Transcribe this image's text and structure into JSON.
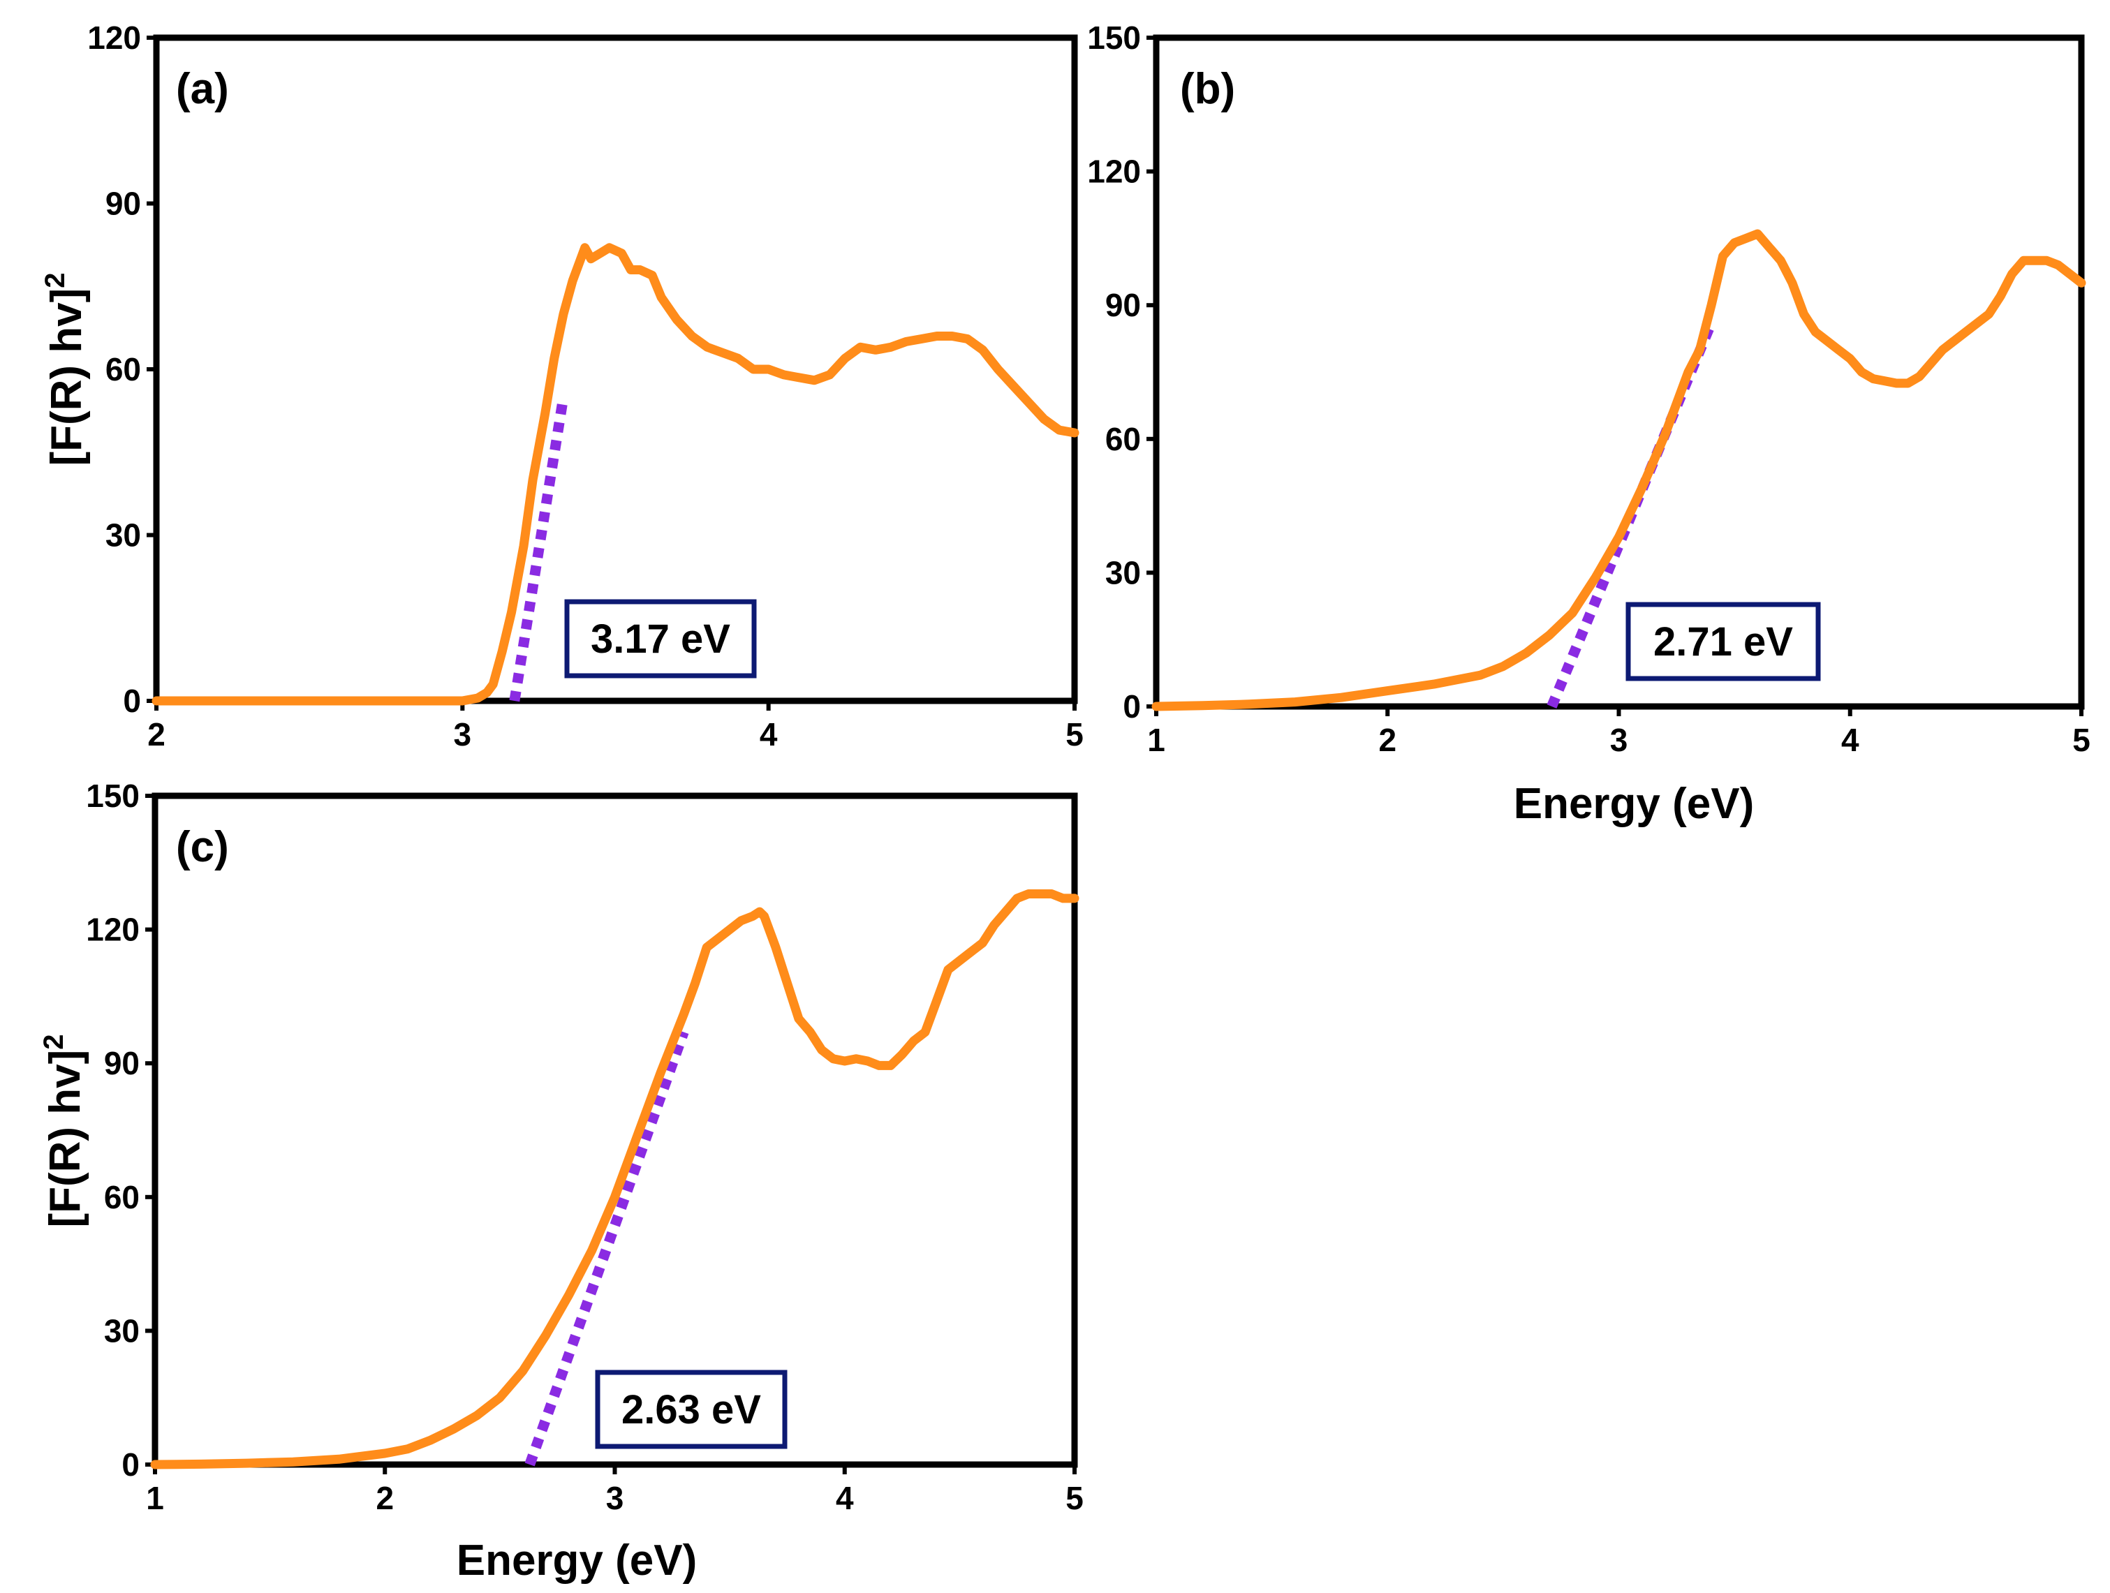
{
  "figure": {
    "panels": [
      "a",
      "b",
      "c"
    ]
  },
  "colors": {
    "curve": "#ff8c1a",
    "fit_line": "#8a2be2",
    "frame": "#000000",
    "gap_box_border": "#0d1a73"
  },
  "chart_data": [
    {
      "id": "a",
      "type": "line",
      "panel_label": "(a)",
      "xlabel": "",
      "ylabel": "[F(R) hv]",
      "ylabel_sup": "2",
      "xlim": [
        2,
        5
      ],
      "ylim": [
        0,
        120
      ],
      "xticks": [
        2,
        3,
        4,
        5
      ],
      "yticks": [
        0,
        30,
        60,
        90,
        120
      ],
      "grid": false,
      "band_gap_label": "3.17 eV",
      "fit_line": {
        "x": [
          3.17,
          3.33
        ],
        "y": [
          0,
          55
        ]
      },
      "series": [
        {
          "name": "[F(R) hv]^2",
          "x": [
            2.0,
            2.5,
            3.0,
            3.05,
            3.08,
            3.1,
            3.13,
            3.16,
            3.2,
            3.23,
            3.27,
            3.3,
            3.33,
            3.36,
            3.4,
            3.42,
            3.45,
            3.48,
            3.52,
            3.55,
            3.58,
            3.62,
            3.65,
            3.7,
            3.75,
            3.8,
            3.85,
            3.9,
            3.95,
            4.0,
            4.05,
            4.1,
            4.15,
            4.2,
            4.25,
            4.3,
            4.35,
            4.4,
            4.45,
            4.5,
            4.55,
            4.6,
            4.65,
            4.7,
            4.75,
            4.8,
            4.85,
            4.9,
            4.95,
            5.0
          ],
          "y": [
            0,
            0,
            0,
            0.5,
            1.5,
            3,
            9,
            16,
            28,
            40,
            52,
            62,
            70,
            76,
            82,
            80,
            81,
            82,
            81,
            78,
            78,
            77,
            73,
            69,
            66,
            64,
            63,
            62,
            60,
            60,
            59,
            58.5,
            58,
            59,
            62,
            64,
            63.5,
            64,
            65,
            65.5,
            66,
            66,
            65.5,
            63.5,
            60,
            57,
            54,
            51,
            49,
            48.5
          ]
        }
      ]
    },
    {
      "id": "b",
      "type": "line",
      "panel_label": "(b)",
      "xlabel": "Energy (eV)",
      "ylabel": "",
      "ylabel_sup": "",
      "xlim": [
        1,
        5
      ],
      "ylim": [
        0,
        150
      ],
      "xticks": [
        1,
        2,
        3,
        4,
        5
      ],
      "yticks": [
        0,
        30,
        60,
        90,
        120,
        150
      ],
      "grid": false,
      "band_gap_label": "2.71 eV",
      "fit_line": {
        "x": [
          2.71,
          3.4
        ],
        "y": [
          0,
          86
        ]
      },
      "series": [
        {
          "name": "[F(R) hv]^2",
          "x": [
            1.0,
            1.2,
            1.4,
            1.6,
            1.8,
            2.0,
            2.2,
            2.4,
            2.5,
            2.6,
            2.7,
            2.8,
            2.85,
            2.9,
            3.0,
            3.1,
            3.2,
            3.3,
            3.35,
            3.4,
            3.45,
            3.5,
            3.55,
            3.6,
            3.65,
            3.7,
            3.75,
            3.8,
            3.85,
            3.9,
            3.95,
            4.0,
            4.05,
            4.1,
            4.15,
            4.2,
            4.25,
            4.3,
            4.35,
            4.4,
            4.5,
            4.6,
            4.65,
            4.7,
            4.75,
            4.8,
            4.85,
            4.9,
            4.95,
            5.0
          ],
          "y": [
            0,
            0.2,
            0.5,
            1,
            2,
            3.5,
            5,
            7,
            9,
            12,
            16,
            21,
            25,
            29,
            38,
            49,
            61,
            75,
            80,
            90,
            101,
            104,
            105,
            106,
            103,
            100,
            95,
            88,
            84,
            82,
            80,
            78,
            75,
            73.5,
            73,
            72.5,
            72.5,
            74,
            77,
            80,
            84,
            88,
            92,
            97,
            100,
            100,
            100,
            99,
            97,
            95
          ]
        }
      ]
    },
    {
      "id": "c",
      "type": "line",
      "panel_label": "(c)",
      "xlabel": "Energy (eV)",
      "ylabel": "[F(R) hv]",
      "ylabel_sup": "2",
      "xlim": [
        1,
        5
      ],
      "ylim": [
        0,
        150
      ],
      "xticks": [
        1,
        2,
        3,
        4,
        5
      ],
      "yticks": [
        0,
        30,
        60,
        90,
        120,
        150
      ],
      "grid": false,
      "band_gap_label": "2.63 eV",
      "fit_line": {
        "x": [
          2.63,
          3.3
        ],
        "y": [
          0,
          97
        ]
      },
      "series": [
        {
          "name": "[F(R) hv]^2",
          "x": [
            1.0,
            1.2,
            1.4,
            1.6,
            1.8,
            2.0,
            2.1,
            2.2,
            2.3,
            2.4,
            2.5,
            2.6,
            2.7,
            2.8,
            2.9,
            3.0,
            3.1,
            3.2,
            3.3,
            3.35,
            3.4,
            3.45,
            3.5,
            3.55,
            3.6,
            3.63,
            3.65,
            3.7,
            3.75,
            3.8,
            3.85,
            3.9,
            3.95,
            4.0,
            4.05,
            4.1,
            4.15,
            4.2,
            4.25,
            4.3,
            4.35,
            4.4,
            4.45,
            4.5,
            4.55,
            4.6,
            4.65,
            4.7,
            4.75,
            4.8,
            4.85,
            4.9,
            4.95,
            5.0
          ],
          "y": [
            0,
            0.1,
            0.3,
            0.6,
            1.2,
            2.5,
            3.5,
            5.5,
            8,
            11,
            15,
            21,
            29,
            38,
            48,
            60,
            74,
            88,
            101,
            108,
            116,
            118,
            120,
            122,
            123,
            124,
            123,
            116,
            108,
            100,
            97,
            93,
            91,
            90.5,
            91,
            90.5,
            89.5,
            89.5,
            92,
            95,
            97,
            104,
            111,
            113,
            115,
            117,
            121,
            124,
            127,
            128,
            128,
            128,
            127,
            127
          ]
        }
      ]
    }
  ]
}
